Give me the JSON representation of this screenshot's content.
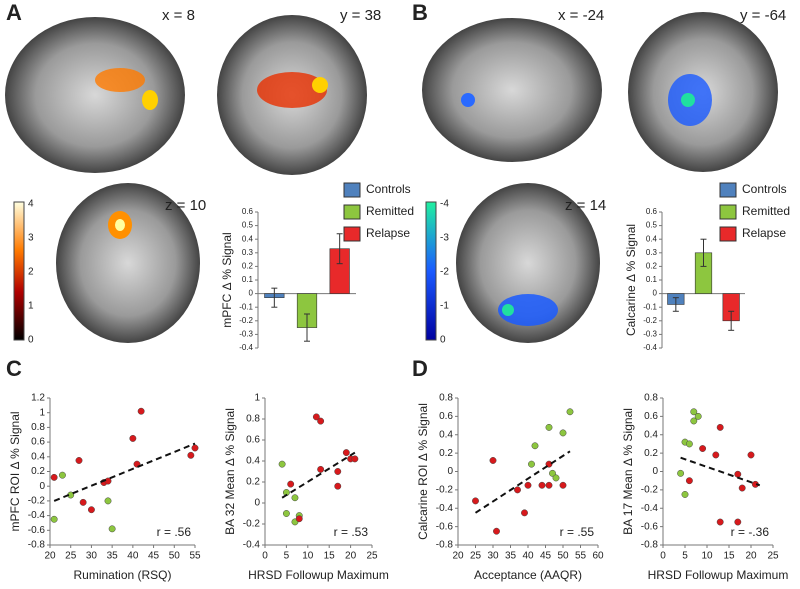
{
  "panel_labels": [
    "A",
    "B",
    "C",
    "D"
  ],
  "slice_labels": [
    "x = 8",
    "y = 38",
    "z = 10",
    "x = -24",
    "y = -64",
    "z = 14"
  ],
  "colorbars": [
    {
      "ticks": [
        4,
        3,
        2,
        1,
        0
      ]
    },
    {
      "ticks": [
        -4,
        -3,
        -2,
        -1,
        0
      ]
    }
  ],
  "chart_data": [
    {
      "type": "bar",
      "ylabel": "mPFC  Δ % Signal",
      "ylim": [
        -0.4,
        0.6
      ],
      "yticks": [
        -0.4,
        -0.3,
        -0.2,
        -0.1,
        0,
        0.1,
        0.2,
        0.3,
        0.4,
        0.5,
        0.6
      ],
      "series": [
        {
          "name": "Controls",
          "color": "#4f81bd",
          "values": [
            -0.03
          ],
          "errors": [
            0.07
          ]
        },
        {
          "name": "Remitted",
          "color": "#8dc63f",
          "values": [
            -0.25
          ],
          "errors": [
            0.1
          ]
        },
        {
          "name": "Relapse",
          "color": "#e8292a",
          "values": [
            0.33
          ],
          "errors": [
            0.11
          ]
        }
      ]
    },
    {
      "type": "bar",
      "ylabel": "Calcarine  Δ % Signal",
      "ylim": [
        -0.4,
        0.6
      ],
      "yticks": [
        -0.4,
        -0.3,
        -0.2,
        -0.1,
        0,
        0.1,
        0.2,
        0.3,
        0.4,
        0.5,
        0.6
      ],
      "series": [
        {
          "name": "Controls",
          "color": "#4f81bd",
          "values": [
            -0.08
          ],
          "errors": [
            0.05
          ]
        },
        {
          "name": "Remitted",
          "color": "#8dc63f",
          "values": [
            0.3
          ],
          "errors": [
            0.1
          ]
        },
        {
          "name": "Relapse",
          "color": "#e8292a",
          "values": [
            -0.2
          ],
          "errors": [
            0.07
          ]
        }
      ]
    },
    {
      "type": "scatter",
      "xlabel": "Rumination (RSQ)",
      "ylabel": "mPFC ROI  Δ % Signal",
      "annotation": "r = .56",
      "xlim": [
        20,
        55
      ],
      "xticks": [
        20,
        25,
        30,
        35,
        40,
        45,
        50,
        55
      ],
      "ylim": [
        -0.8,
        1.2
      ],
      "yticks": [
        -0.8,
        -0.6,
        -0.4,
        -0.2,
        0,
        0.2,
        0.4,
        0.6,
        0.8,
        1,
        1.2
      ],
      "trendline": {
        "x": [
          21,
          55
        ],
        "y": [
          -0.2,
          0.58
        ]
      },
      "series": [
        {
          "color": "#8dc63f",
          "x": [
            21,
            23,
            25,
            34,
            35
          ],
          "values": [
            -0.45,
            0.15,
            -0.12,
            -0.2,
            -0.58
          ]
        },
        {
          "color": "#d7191c",
          "x": [
            21,
            27,
            28,
            30,
            33,
            34,
            40,
            41,
            42,
            54,
            55
          ],
          "values": [
            0.12,
            0.35,
            -0.22,
            -0.32,
            0.05,
            0.07,
            0.65,
            0.3,
            1.02,
            0.42,
            0.52
          ]
        }
      ]
    },
    {
      "type": "scatter",
      "xlabel": "HRSD Followup Maximum",
      "ylabel": "BA 32 Mean  Δ % Signal",
      "annotation": "r = .53",
      "xlim": [
        0,
        25
      ],
      "xticks": [
        0,
        5,
        10,
        15,
        20,
        25
      ],
      "ylim": [
        -0.4,
        1
      ],
      "yticks": [
        -0.4,
        -0.2,
        0,
        0.2,
        0.4,
        0.6,
        0.8,
        1
      ],
      "trendline": {
        "x": [
          4,
          21
        ],
        "y": [
          0.05,
          0.48
        ]
      },
      "series": [
        {
          "color": "#8dc63f",
          "x": [
            4,
            5,
            5,
            7,
            7,
            8
          ],
          "values": [
            0.37,
            0.1,
            -0.1,
            -0.18,
            0.05,
            -0.12
          ]
        },
        {
          "color": "#d7191c",
          "x": [
            6,
            8,
            12,
            13,
            13,
            17,
            17,
            19,
            20,
            21
          ],
          "values": [
            0.18,
            -0.15,
            0.82,
            0.78,
            0.32,
            0.3,
            0.16,
            0.48,
            0.42,
            0.42
          ]
        }
      ]
    },
    {
      "type": "scatter",
      "xlabel": "Acceptance (AAQR)",
      "ylabel": "Calcarine ROI  Δ % Signal",
      "annotation": "r = .55",
      "xlim": [
        20,
        60
      ],
      "xticks": [
        20,
        25,
        30,
        35,
        40,
        45,
        50,
        55,
        60
      ],
      "ylim": [
        -0.8,
        0.8
      ],
      "yticks": [
        -0.8,
        -0.6,
        -0.4,
        -0.2,
        0,
        0.2,
        0.4,
        0.6,
        0.8
      ],
      "trendline": {
        "x": [
          25,
          52
        ],
        "y": [
          -0.45,
          0.22
        ]
      },
      "series": [
        {
          "color": "#8dc63f",
          "x": [
            41,
            42,
            46,
            47,
            48,
            50,
            52
          ],
          "values": [
            0.08,
            0.28,
            0.48,
            -0.02,
            -0.07,
            0.42,
            0.65
          ]
        },
        {
          "color": "#d7191c",
          "x": [
            25,
            30,
            31,
            37,
            39,
            40,
            44,
            46,
            46,
            50
          ],
          "values": [
            -0.32,
            0.12,
            -0.65,
            -0.2,
            -0.45,
            -0.15,
            -0.15,
            0.08,
            -0.15,
            -0.15
          ]
        }
      ]
    },
    {
      "type": "scatter",
      "xlabel": "HRSD Followup Maximum",
      "ylabel": "BA 17 Mean  Δ % Signal",
      "annotation": "r = -.36",
      "xlim": [
        0,
        25
      ],
      "xticks": [
        0,
        5,
        10,
        15,
        20,
        25
      ],
      "ylim": [
        -0.8,
        0.8
      ],
      "yticks": [
        -0.8,
        -0.6,
        -0.4,
        -0.2,
        0,
        0.2,
        0.4,
        0.6,
        0.8
      ],
      "trendline": {
        "x": [
          4,
          22
        ],
        "y": [
          0.15,
          -0.15
        ]
      },
      "series": [
        {
          "color": "#8dc63f",
          "x": [
            4,
            5,
            5,
            6,
            7,
            7,
            8
          ],
          "values": [
            -0.02,
            -0.25,
            0.32,
            0.3,
            0.55,
            0.65,
            0.6
          ]
        },
        {
          "color": "#d7191c",
          "x": [
            6,
            9,
            12,
            13,
            13,
            17,
            17,
            18,
            20,
            21
          ],
          "values": [
            -0.1,
            0.25,
            0.18,
            0.48,
            -0.55,
            -0.03,
            -0.55,
            -0.18,
            0.18,
            -0.14
          ]
        }
      ]
    }
  ]
}
